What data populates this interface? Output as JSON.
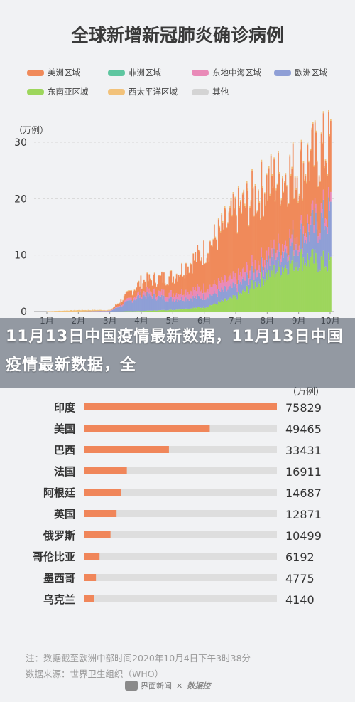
{
  "title": "全球新增新冠肺炎确诊病例",
  "overlay_text": "11月13日中国疫情最新数据，11月13日中国疫情最新数据，全",
  "colors": {
    "americas": "#f08a5a",
    "africa": "#5ec6a0",
    "east_med": "#e98ab8",
    "europe": "#8f9fd6",
    "se_asia": "#9dd65c",
    "w_pacific": "#f2c27a",
    "other": "#d4d4d4",
    "bar": "#f0865a",
    "track": "#dedede"
  },
  "chart_data": [
    {
      "type": "area",
      "title": "全球新增新冠肺炎确诊病例",
      "unit": "（万例）",
      "legend": [
        "美洲区域",
        "非洲区域",
        "东地中海区域",
        "欧洲区域",
        "东南亚区域",
        "西太平洋区域",
        "其他"
      ],
      "legend_placement": "top",
      "x_ticks": [
        "1月",
        "2月",
        "3月",
        "4月",
        "5月",
        "6月",
        "7月",
        "8月",
        "9月",
        "10月"
      ],
      "y_ticks": [
        0,
        10,
        20,
        30
      ],
      "ylim": [
        0,
        33
      ],
      "approx_monthly_totals": {
        "x": [
          "1月",
          "2月",
          "3月",
          "4月",
          "5月",
          "6月",
          "7月",
          "8月",
          "9月",
          "10月"
        ],
        "series": [
          {
            "name": "东南亚区域",
            "values": [
              0,
              0,
              0,
              0.1,
              0.3,
              0.8,
              2.5,
              6.5,
              9.5,
              8.5
            ]
          },
          {
            "name": "欧洲区域",
            "values": [
              0,
              0,
              0.1,
              2.8,
              1.9,
              1.8,
              1.8,
              2.2,
              3.5,
              8.5
            ]
          },
          {
            "name": "东地中海区域",
            "values": [
              0,
              0,
              0.05,
              0.6,
              1.0,
              1.6,
              1.6,
              1.4,
              1.3,
              1.5
            ]
          },
          {
            "name": "美洲区域",
            "values": [
              0,
              0,
              0.02,
              1.8,
              3.0,
              6.5,
              11.5,
              12.5,
              11.0,
              11.0
            ]
          },
          {
            "name": "西太平洋区域",
            "values": [
              0.05,
              0.25,
              0.1,
              0.1,
              0.1,
              0.1,
              0.3,
              0.3,
              0.3,
              0.3
            ]
          }
        ]
      }
    },
    {
      "type": "bar",
      "unit": "（万例）",
      "categories": [
        "印度",
        "美国",
        "巴西",
        "法国",
        "阿根廷",
        "英国",
        "俄罗斯",
        "哥伦比亚",
        "墨西哥",
        "乌克兰"
      ],
      "values": [
        75829,
        49465,
        33431,
        16911,
        14687,
        12871,
        10499,
        6192,
        4775,
        4140
      ],
      "value_labels": [
        "75829",
        "49465",
        "33431",
        "16911",
        "14687",
        "12871",
        "10499",
        "6192",
        "4775",
        "4140"
      ]
    }
  ],
  "notes": {
    "note1": "注：数据截至欧洲中部时间2020年10月4日下午3时38分",
    "note2": "数据来源：世界卫生组织（WHO）"
  },
  "footer": {
    "brand1": "界面新闻",
    "brand2": "数据控"
  }
}
